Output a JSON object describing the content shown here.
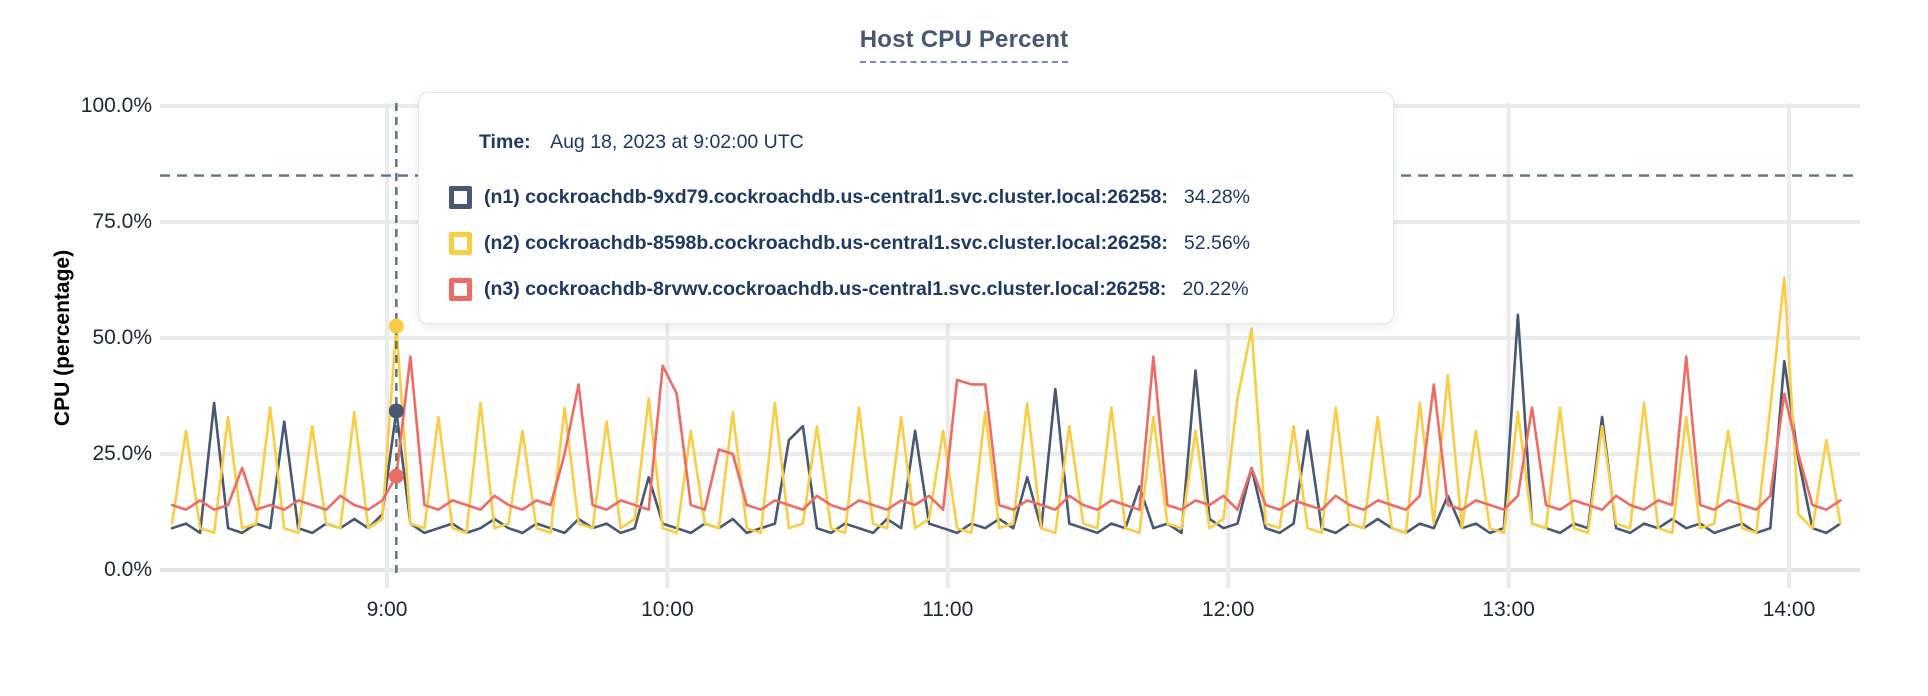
{
  "title": "Host CPU Percent",
  "tooltip": {
    "time_label": "Time:",
    "time_value": "Aug 18, 2023 at 9:02:00 UTC",
    "series": [
      {
        "id": "n1",
        "label": "(n1) cockroachdb-9xd79.cockroachdb.us-central1.svc.cluster.local:26258:",
        "value": "34.28%",
        "color": "#475872"
      },
      {
        "id": "n2",
        "label": "(n2) cockroachdb-8598b.cockroachdb.us-central1.svc.cluster.local:26258:",
        "value": "52.56%",
        "color": "#fbcd44"
      },
      {
        "id": "n3",
        "label": "(n3) cockroachdb-8rvwv.cockroachdb.us-central1.svc.cluster.local:26258:",
        "value": "20.22%",
        "color": "#ef6c64"
      }
    ]
  },
  "chart_data": {
    "type": "line",
    "title": "Host CPU Percent",
    "xlabel": "",
    "ylabel": "CPU (percentage)",
    "ylim": [
      0,
      100
    ],
    "yticks": [
      0,
      25,
      50,
      75,
      100
    ],
    "ytick_labels": [
      "0.0%",
      "25.0%",
      "50.0%",
      "75.0%",
      "100.0%"
    ],
    "xticks_hours": [
      9,
      10,
      11,
      12,
      13,
      14
    ],
    "xtick_labels": [
      "9:00",
      "10:00",
      "11:00",
      "12:00",
      "13:00",
      "14:00"
    ],
    "x_start_hour": 8.2333,
    "x_step_hours": 0.05,
    "grid": true,
    "legend_position": "tooltip-overlay",
    "threshold_value": 85,
    "hover": {
      "time_hour": 9.0333,
      "time_text": "Aug 18, 2023 at 9:02:00 UTC",
      "points": [
        {
          "series_id": "n1",
          "value": 34.28
        },
        {
          "series_id": "n2",
          "value": 52.56
        },
        {
          "series_id": "n3",
          "value": 20.22
        }
      ]
    },
    "series": [
      {
        "id": "n1",
        "name": "(n1) cockroachdb-9xd79.cockroachdb.us-central1.svc.cluster.local:26258",
        "color": "#475872",
        "values": [
          9,
          10,
          8,
          36,
          9,
          8,
          10,
          9,
          32,
          9,
          8,
          10,
          9,
          11,
          9,
          12,
          34.28,
          10,
          8,
          9,
          10,
          8,
          9,
          11,
          9,
          8,
          10,
          9,
          8,
          11,
          9,
          10,
          8,
          9,
          20,
          10,
          9,
          8,
          10,
          9,
          11,
          8,
          9,
          10,
          28,
          31,
          9,
          8,
          10,
          9,
          8,
          11,
          9,
          30,
          10,
          9,
          8,
          10,
          9,
          11,
          9,
          20,
          9,
          39,
          10,
          9,
          8,
          10,
          9,
          18,
          9,
          10,
          8,
          43,
          11,
          9,
          10,
          22,
          9,
          8,
          10,
          30,
          9,
          8,
          10,
          9,
          11,
          9,
          8,
          10,
          9,
          16,
          9,
          10,
          8,
          9,
          55,
          10,
          9,
          8,
          10,
          9,
          33,
          9,
          8,
          10,
          9,
          11,
          9,
          10,
          8,
          9,
          10,
          8,
          9,
          45,
          24,
          9,
          8,
          10
        ]
      },
      {
        "id": "n2",
        "name": "(n2) cockroachdb-8598b.cockroachdb.us-central1.svc.cluster.local:26258",
        "color": "#fbcd44",
        "values": [
          10,
          30,
          9,
          8,
          33,
          9,
          10,
          35,
          9,
          8,
          31,
          10,
          9,
          34,
          9,
          11,
          52.56,
          10,
          9,
          33,
          9,
          8,
          36,
          9,
          10,
          30,
          9,
          8,
          35,
          10,
          9,
          32,
          9,
          11,
          37,
          9,
          8,
          30,
          10,
          9,
          34,
          9,
          8,
          36,
          9,
          10,
          31,
          9,
          8,
          35,
          10,
          9,
          33,
          9,
          11,
          30,
          9,
          8,
          34,
          9,
          10,
          36,
          9,
          8,
          31,
          10,
          9,
          35,
          9,
          8,
          33,
          10,
          9,
          30,
          9,
          11,
          37,
          52,
          10,
          9,
          31,
          9,
          8,
          35,
          10,
          9,
          33,
          9,
          8,
          36,
          10,
          42,
          9,
          30,
          9,
          8,
          34,
          10,
          9,
          35,
          9,
          8,
          31,
          10,
          9,
          36,
          9,
          8,
          33,
          9,
          10,
          30,
          9,
          8,
          35,
          63,
          12,
          9,
          28,
          10
        ]
      },
      {
        "id": "n3",
        "name": "(n3) cockroachdb-8rvwv.cockroachdb.us-central1.svc.cluster.local:26258",
        "color": "#ef6c64",
        "values": [
          14,
          13,
          15,
          13,
          14,
          22,
          13,
          14,
          13,
          15,
          14,
          13,
          16,
          14,
          13,
          15,
          20.22,
          46,
          14,
          13,
          15,
          14,
          13,
          16,
          14,
          13,
          15,
          14,
          25,
          40,
          14,
          13,
          15,
          14,
          13,
          44,
          38,
          14,
          13,
          26,
          25,
          14,
          13,
          15,
          14,
          13,
          16,
          14,
          13,
          15,
          14,
          13,
          15,
          14,
          16,
          13,
          41,
          40,
          40,
          14,
          13,
          15,
          14,
          13,
          16,
          14,
          13,
          15,
          14,
          13,
          46,
          14,
          13,
          15,
          14,
          16,
          13,
          22,
          14,
          13,
          15,
          14,
          13,
          16,
          14,
          13,
          15,
          14,
          13,
          16,
          40,
          14,
          13,
          15,
          14,
          13,
          16,
          35,
          14,
          13,
          15,
          14,
          13,
          16,
          14,
          13,
          15,
          14,
          46,
          14,
          13,
          15,
          14,
          13,
          16,
          38,
          25,
          14,
          13,
          15
        ]
      }
    ]
  }
}
